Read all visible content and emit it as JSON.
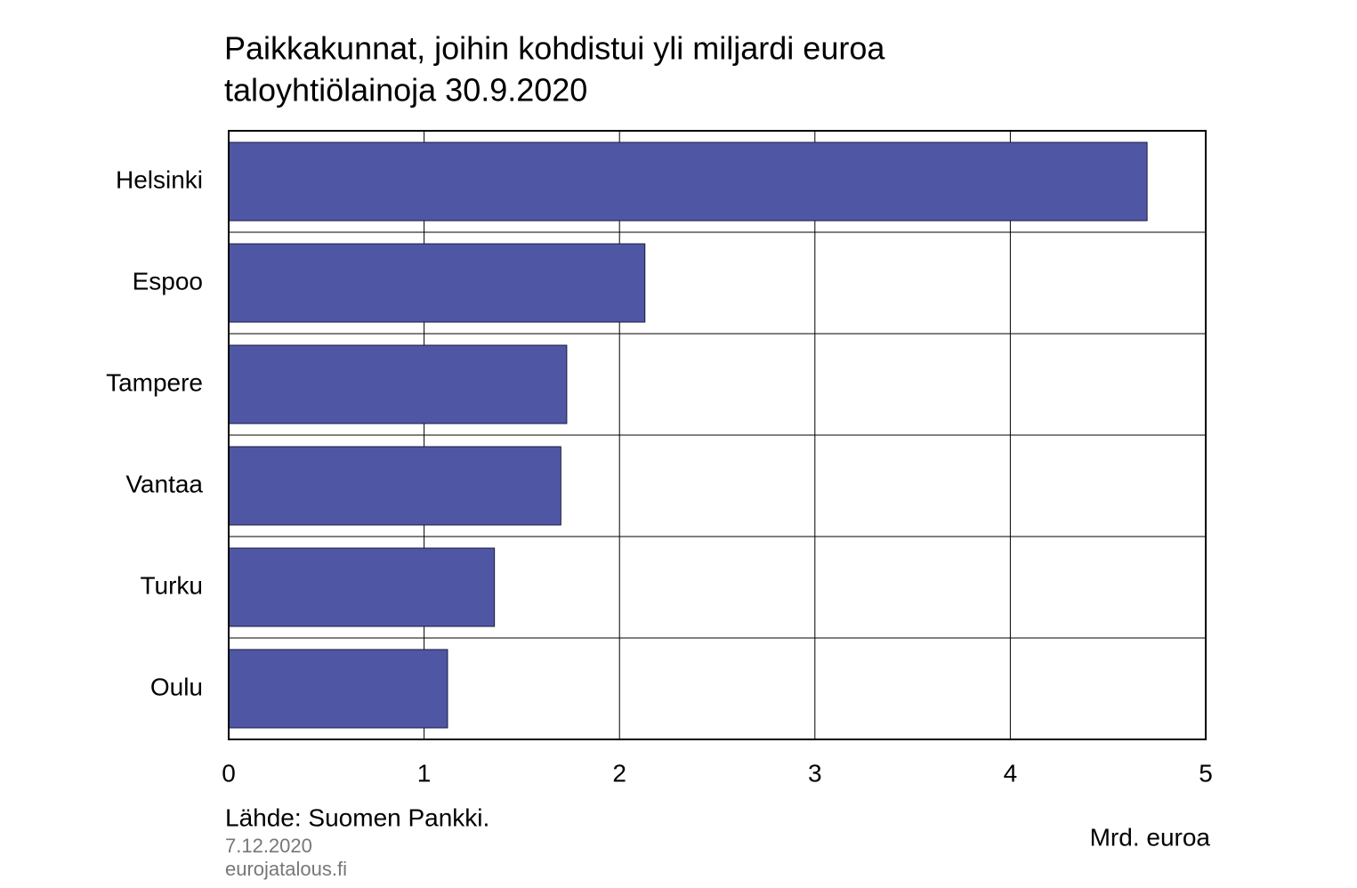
{
  "chart_data": {
    "type": "bar",
    "orientation": "horizontal",
    "title": [
      "Paikkakunnat, joihin kohdistui yli miljardi euroa",
      "taloyhtiölainoja 30.9.2020"
    ],
    "categories": [
      "Helsinki",
      "Espoo",
      "Tampere",
      "Vantaa",
      "Turku",
      "Oulu"
    ],
    "values": [
      4.7,
      2.13,
      1.73,
      1.7,
      1.36,
      1.12
    ],
    "color": "#4f57a5",
    "xlim": [
      0,
      5
    ],
    "xticks": [
      0,
      1,
      2,
      3,
      4,
      5
    ],
    "grid": true,
    "x_label": "Mrd. euroa",
    "source": "Lähde:  Suomen  Pankki.",
    "date": "7.12.2020",
    "site": "eurojatalous.fi"
  }
}
